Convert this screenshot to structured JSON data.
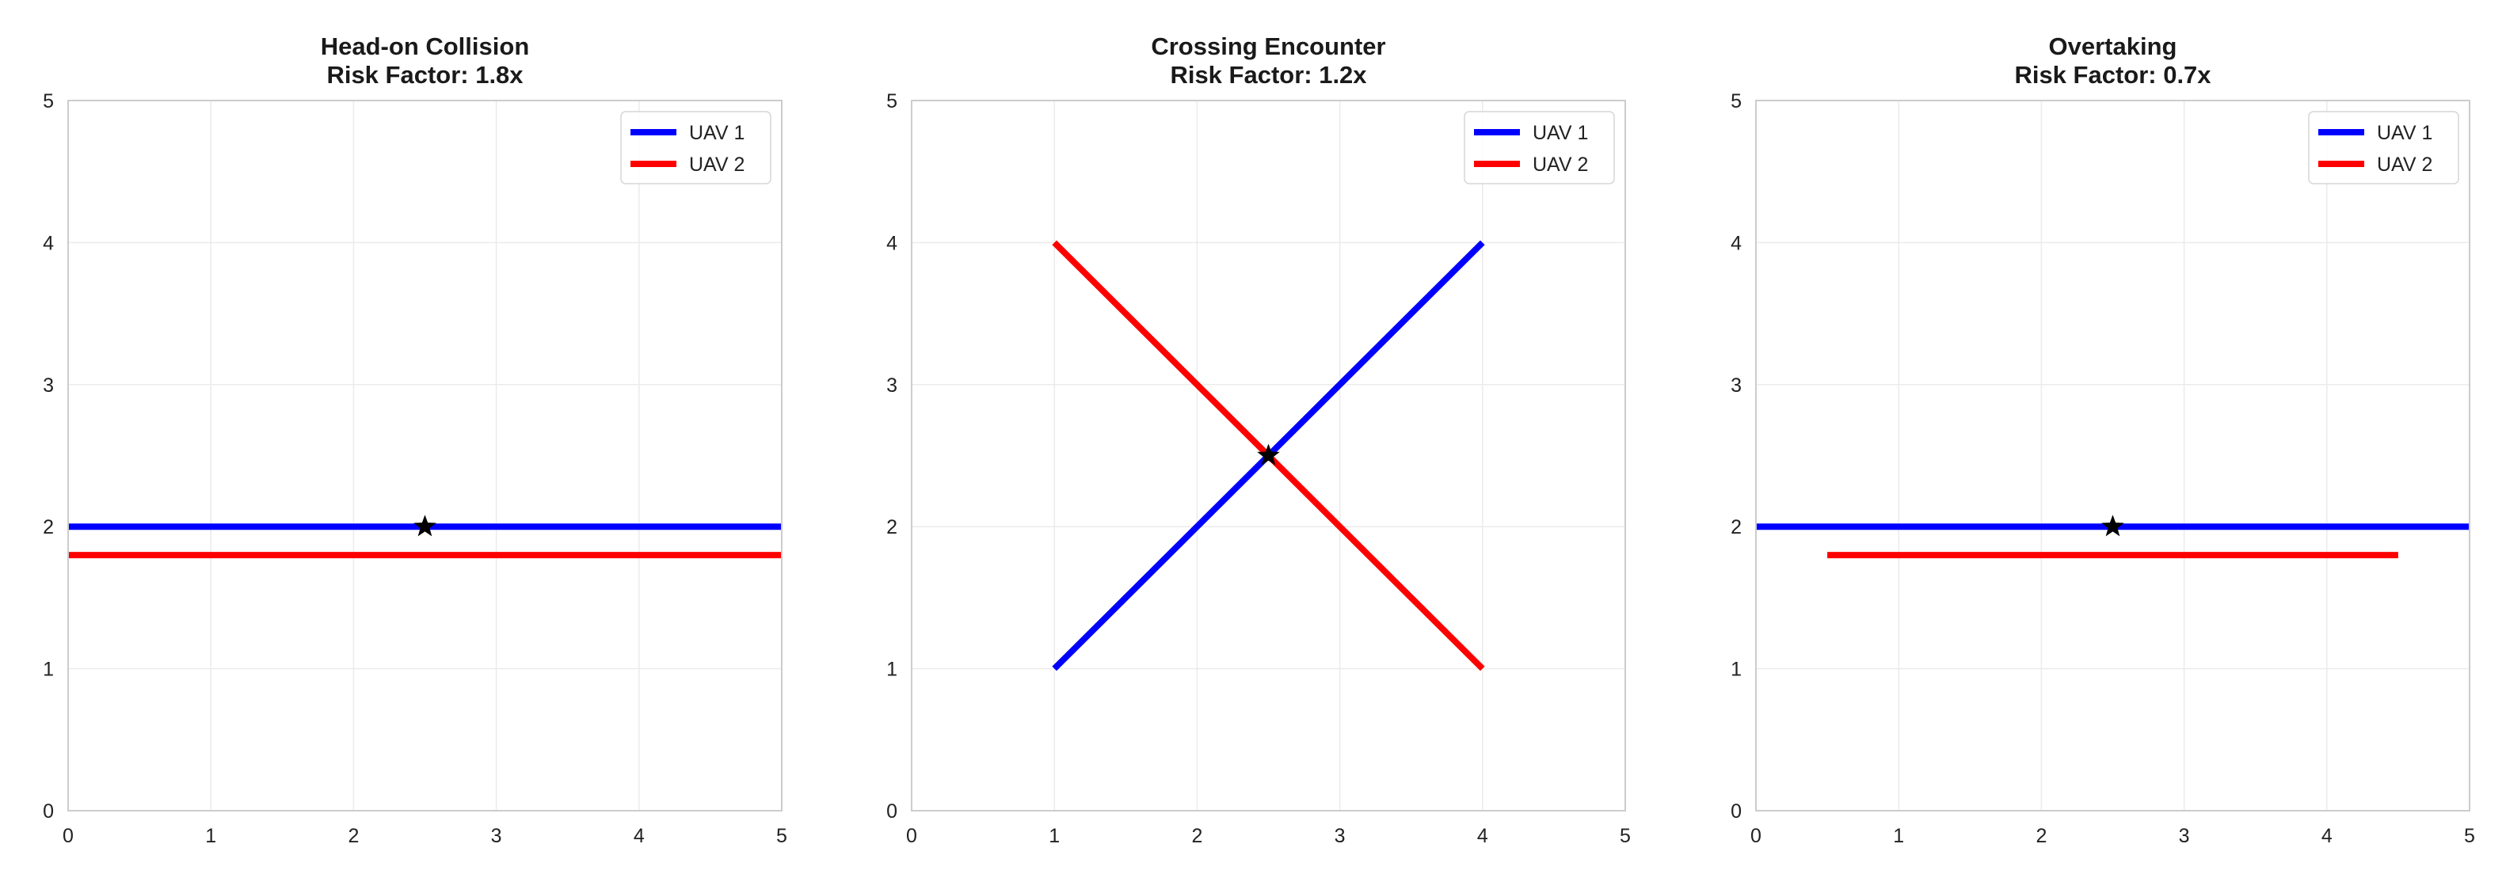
{
  "chart_data": [
    {
      "type": "line",
      "title": "Head-on Collision",
      "subtitle": "Risk Factor: 1.8x",
      "xlim": [
        0,
        5
      ],
      "ylim": [
        0,
        5
      ],
      "xticks": [
        0,
        1,
        2,
        3,
        4,
        5
      ],
      "yticks": [
        0,
        1,
        2,
        3,
        4,
        5
      ],
      "grid": true,
      "legend": "top-right",
      "series": [
        {
          "name": "UAV 1",
          "color": "#0000ff",
          "x": [
            0,
            5
          ],
          "y": [
            2,
            2
          ]
        },
        {
          "name": "UAV 2",
          "color": "#ff0000",
          "x": [
            0,
            5
          ],
          "y": [
            1.8,
            1.8
          ]
        }
      ],
      "marker": {
        "type": "star",
        "x": 2.5,
        "y": 2,
        "color": "#000000"
      }
    },
    {
      "type": "line",
      "title": "Crossing Encounter",
      "subtitle": "Risk Factor: 1.2x",
      "xlim": [
        0,
        5
      ],
      "ylim": [
        0,
        5
      ],
      "xticks": [
        0,
        1,
        2,
        3,
        4,
        5
      ],
      "yticks": [
        0,
        1,
        2,
        3,
        4,
        5
      ],
      "grid": true,
      "legend": "top-right",
      "series": [
        {
          "name": "UAV 1",
          "color": "#0000ff",
          "x": [
            1,
            4
          ],
          "y": [
            1,
            4
          ]
        },
        {
          "name": "UAV 2",
          "color": "#ff0000",
          "x": [
            1,
            4
          ],
          "y": [
            4,
            1
          ]
        }
      ],
      "marker": {
        "type": "star",
        "x": 2.5,
        "y": 2.5,
        "color": "#000000"
      }
    },
    {
      "type": "line",
      "title": "Overtaking",
      "subtitle": "Risk Factor: 0.7x",
      "xlim": [
        0,
        5
      ],
      "ylim": [
        0,
        5
      ],
      "xticks": [
        0,
        1,
        2,
        3,
        4,
        5
      ],
      "yticks": [
        0,
        1,
        2,
        3,
        4,
        5
      ],
      "grid": true,
      "legend": "top-right",
      "series": [
        {
          "name": "UAV 1",
          "color": "#0000ff",
          "x": [
            0,
            5
          ],
          "y": [
            2,
            2
          ]
        },
        {
          "name": "UAV 2",
          "color": "#ff0000",
          "x": [
            0.5,
            4.5
          ],
          "y": [
            1.8,
            1.8
          ]
        }
      ],
      "marker": {
        "type": "star",
        "x": 2.5,
        "y": 2,
        "color": "#000000"
      }
    }
  ]
}
